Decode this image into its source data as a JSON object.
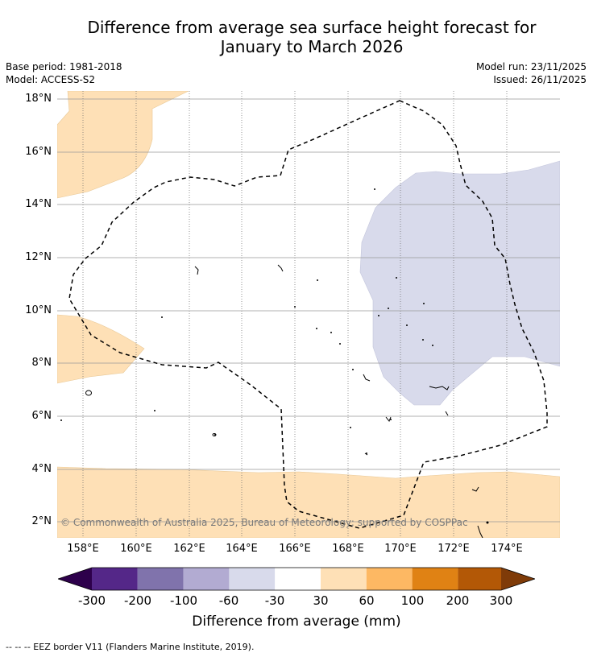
{
  "title_line1": "Difference from average sea surface height forecast for",
  "title_line2": "January to March 2026",
  "base_period": "Base period: 1981-2018",
  "model": "Model: ACCESS-S2",
  "model_run": "Model run: 23/11/2025",
  "issued": "Issued: 26/11/2025",
  "lat_labels": [
    "18°N",
    "16°N",
    "14°N",
    "12°N",
    "10°N",
    "8°N",
    "6°N",
    "4°N",
    "2°N"
  ],
  "lon_labels": [
    "158°E",
    "160°E",
    "162°E",
    "164°E",
    "166°E",
    "168°E",
    "170°E",
    "172°E",
    "174°E"
  ],
  "copyright": "© Commonwealth of Australia 2025, Bureau of Meteorology; supported by COSPPac",
  "colorbar": {
    "label": "Difference from average (mm)",
    "ticks": [
      "-300",
      "-200",
      "-100",
      "-60",
      "-30",
      "30",
      "60",
      "100",
      "200",
      "300"
    ],
    "colors": [
      "#2d004b",
      "#542788",
      "#8073ac",
      "#b2abd2",
      "#d8daeb",
      "#ffffff",
      "#fee0b6",
      "#fdb863",
      "#e08214",
      "#b35806",
      "#7f3b08"
    ]
  },
  "legend_eez": "--  --  -- EEZ border V11 (Flanders Marine Institute, 2019).",
  "map_colors": {
    "positive_30_60": "#fee0b6",
    "negative_30_60": "#d8daeb",
    "eez_line": "#000000",
    "grid": "#888888"
  }
}
